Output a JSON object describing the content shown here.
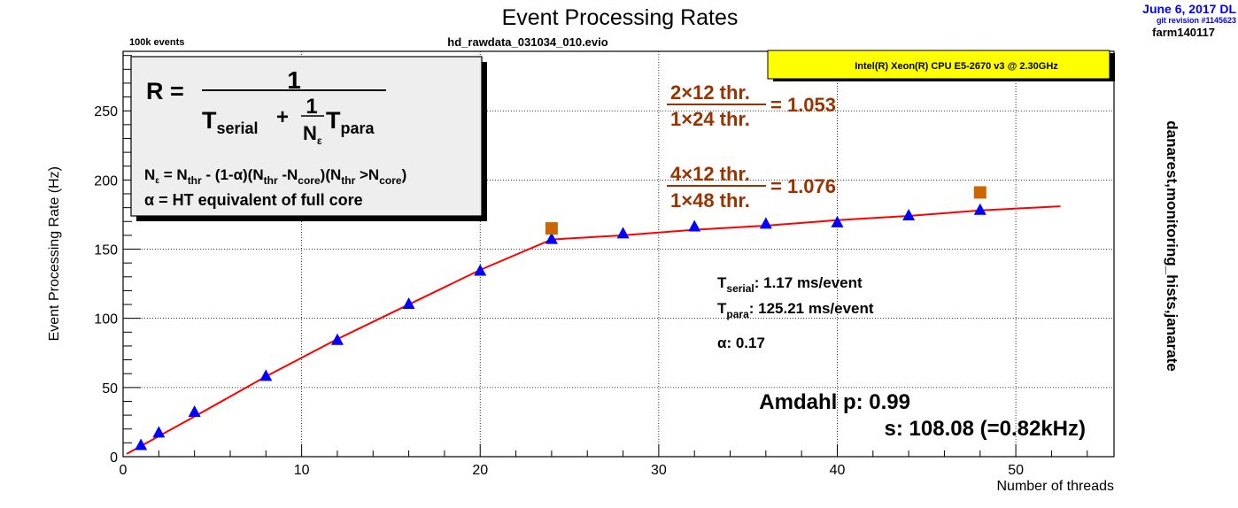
{
  "header": {
    "title": "Event Processing Rates",
    "events": "100k events",
    "file": "hd_rawdata_031034_010.evio",
    "date": "June 6, 2017 DL",
    "git": "git revision #1145623",
    "host": "farm140117"
  },
  "cpu_label": "Intel(R) Xeon(R) CPU E5-2670 v3 @ 2.30GHz",
  "side_label": "danarest,monitoring_hists,janarate",
  "formula": {
    "R": "R =",
    "num": "1",
    "T": "T",
    "serial_sub": "serial",
    "plus": "+",
    "frac_num": "1",
    "N": "N",
    "eps": "ε",
    "para_sub": "para",
    "line1": {
      "a": "N",
      "a_sub": "ε",
      "b": " = N",
      "b_sub": "thr",
      "c": " - (1-α)(N",
      "c_sub": "thr",
      "d": " -N",
      "d_sub": "core",
      "e": ")(N",
      "e_sub": "thr",
      "f": " >N",
      "f_sub": "core",
      "g": ")"
    },
    "line2": "α = HT equivalent of full core"
  },
  "ratios": [
    {
      "num": "2×12 thr.",
      "den": "1×24 thr.",
      "value": "= 1.053"
    },
    {
      "num": "4×12 thr.",
      "den": "1×48 thr.",
      "value": "= 1.076"
    }
  ],
  "params": {
    "tserial_T": "T",
    "tserial_sub": "serial",
    "tserial_val": ": 1.17 ms/event",
    "tpara_T": "T",
    "tpara_sub": "para",
    "tpara_val": ": 125.21 ms/event",
    "alpha": "α: 0.17"
  },
  "amdahl": {
    "p": "Amdahl p: 0.99",
    "s": "s: 108.08 (=0.82kHz)"
  },
  "colors": {
    "fit": "#ff0000",
    "triangle": "#0000ff",
    "square": "#cc6600",
    "ratio": "#993300",
    "cpu_box": "#ffff00",
    "date": "#0000ff"
  },
  "chart_data": {
    "type": "scatter",
    "xlabel": "Number of threads",
    "ylabel": "Event Processing Rate (Hz)",
    "xlim": [
      0,
      55.5
    ],
    "ylim": [
      0,
      293
    ],
    "xticks": [
      0,
      10,
      20,
      30,
      40,
      50
    ],
    "yticks": [
      0,
      50,
      100,
      150,
      200,
      250
    ],
    "grid": true,
    "series": [
      {
        "marker": "triangle",
        "color": "#0000ff",
        "x": [
          1,
          2,
          4,
          8,
          12,
          16,
          20,
          24,
          28,
          32,
          36,
          40,
          44,
          48
        ],
        "y": [
          8,
          17,
          32,
          58,
          84,
          110,
          134,
          157,
          161,
          166,
          168,
          169,
          174,
          178
        ]
      },
      {
        "marker": "square",
        "color": "#cc6600",
        "x": [
          24,
          48
        ],
        "y": [
          165,
          191
        ]
      },
      {
        "marker": "line",
        "color": "#ff0000",
        "x": [
          0.2,
          4,
          8,
          12,
          16,
          20,
          24,
          28,
          32,
          36,
          40,
          44,
          48,
          52.5
        ],
        "y": [
          2,
          29,
          58,
          85,
          110,
          135,
          157,
          160,
          164,
          167,
          171,
          174,
          178,
          181
        ]
      }
    ]
  }
}
